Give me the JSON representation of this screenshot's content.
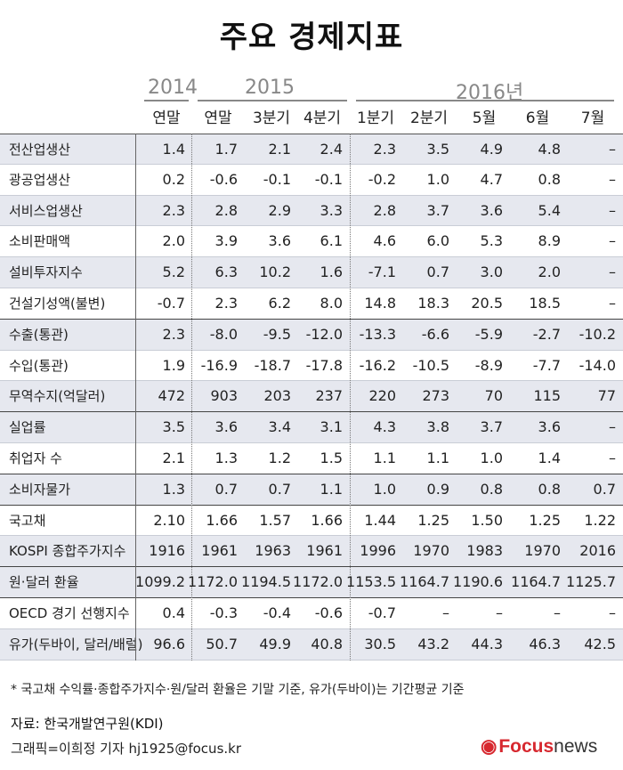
{
  "title": "주요 경제지표",
  "years": [
    "2014",
    "2015",
    "2016년"
  ],
  "columns": [
    "연말",
    "연말",
    "3분기",
    "4분기",
    "1분기",
    "2분기",
    "5월",
    "6월",
    "7월"
  ],
  "rows": [
    {
      "label": "전산업생산",
      "values": [
        "1.4",
        "1.7",
        "2.1",
        "2.4",
        "2.3",
        "3.5",
        "4.9",
        "4.8",
        "–"
      ]
    },
    {
      "label": "광공업생산",
      "values": [
        "0.2",
        "-0.6",
        "-0.1",
        "-0.1",
        "-0.2",
        "1.0",
        "4.7",
        "0.8",
        "–"
      ]
    },
    {
      "label": "서비스업생산",
      "values": [
        "2.3",
        "2.8",
        "2.9",
        "3.3",
        "2.8",
        "3.7",
        "3.6",
        "5.4",
        "–"
      ]
    },
    {
      "label": "소비판매액",
      "values": [
        "2.0",
        "3.9",
        "3.6",
        "6.1",
        "4.6",
        "6.0",
        "5.3",
        "8.9",
        "–"
      ]
    },
    {
      "label": "설비투자지수",
      "values": [
        "5.2",
        "6.3",
        "10.2",
        "1.6",
        "-7.1",
        "0.7",
        "3.0",
        "2.0",
        "–"
      ]
    },
    {
      "label": "건설기성액(불변)",
      "values": [
        "-0.7",
        "2.3",
        "6.2",
        "8.0",
        "14.8",
        "18.3",
        "20.5",
        "18.5",
        "–"
      ]
    },
    {
      "label": "수출(통관)",
      "values": [
        "2.3",
        "-8.0",
        "-9.5",
        "-12.0",
        "-13.3",
        "-6.6",
        "-5.9",
        "-2.7",
        "-10.2"
      ]
    },
    {
      "label": "수입(통관)",
      "values": [
        "1.9",
        "-16.9",
        "-18.7",
        "-17.8",
        "-16.2",
        "-10.5",
        "-8.9",
        "-7.7",
        "-14.0"
      ]
    },
    {
      "label": "무역수지(억달러)",
      "values": [
        "472",
        "903",
        "203",
        "237",
        "220",
        "273",
        "70",
        "115",
        "77"
      ]
    },
    {
      "label": "실업률",
      "values": [
        "3.5",
        "3.6",
        "3.4",
        "3.1",
        "4.3",
        "3.8",
        "3.7",
        "3.6",
        "–"
      ]
    },
    {
      "label": "취업자 수",
      "values": [
        "2.1",
        "1.3",
        "1.2",
        "1.5",
        "1.1",
        "1.1",
        "1.0",
        "1.4",
        "–"
      ]
    },
    {
      "label": "소비자물가",
      "values": [
        "1.3",
        "0.7",
        "0.7",
        "1.1",
        "1.0",
        "0.9",
        "0.8",
        "0.8",
        "0.7"
      ]
    },
    {
      "label": "국고채",
      "values": [
        "2.10",
        "1.66",
        "1.57",
        "1.66",
        "1.44",
        "1.25",
        "1.50",
        "1.25",
        "1.22"
      ]
    },
    {
      "label": "KOSPI 종합주가지수",
      "values": [
        "1916",
        "1961",
        "1963",
        "1961",
        "1996",
        "1970",
        "1983",
        "1970",
        "2016"
      ]
    },
    {
      "label": "원·달러 환율",
      "values": [
        "1099.2",
        "1172.0",
        "1194.5",
        "1172.0",
        "1153.5",
        "1164.7",
        "1190.6",
        "1164.7",
        "1125.7"
      ]
    },
    {
      "label": "OECD 경기 선행지수",
      "values": [
        "0.4",
        "-0.3",
        "-0.4",
        "-0.6",
        "-0.7",
        "–",
        "–",
        "–",
        "–"
      ]
    },
    {
      "label": "유가(두바이, 달러/배럴)",
      "values": [
        "96.6",
        "50.7",
        "49.9",
        "40.8",
        "30.5",
        "43.2",
        "44.3",
        "46.3",
        "42.5"
      ]
    }
  ],
  "note": "* 국고채 수익률·종합주가지수·원/달러 환율은 기말 기준, 유가(두바이)는 기간평균 기준",
  "source": "자료: 한국개발연구원(KDI)",
  "credit": "그래픽=이희정 기자 hj1925@focus.kr",
  "logo": {
    "focus": "Focus",
    "news": "news"
  },
  "colors": {
    "shade": "#e6e8ef",
    "logo_red": "#d7282f"
  }
}
